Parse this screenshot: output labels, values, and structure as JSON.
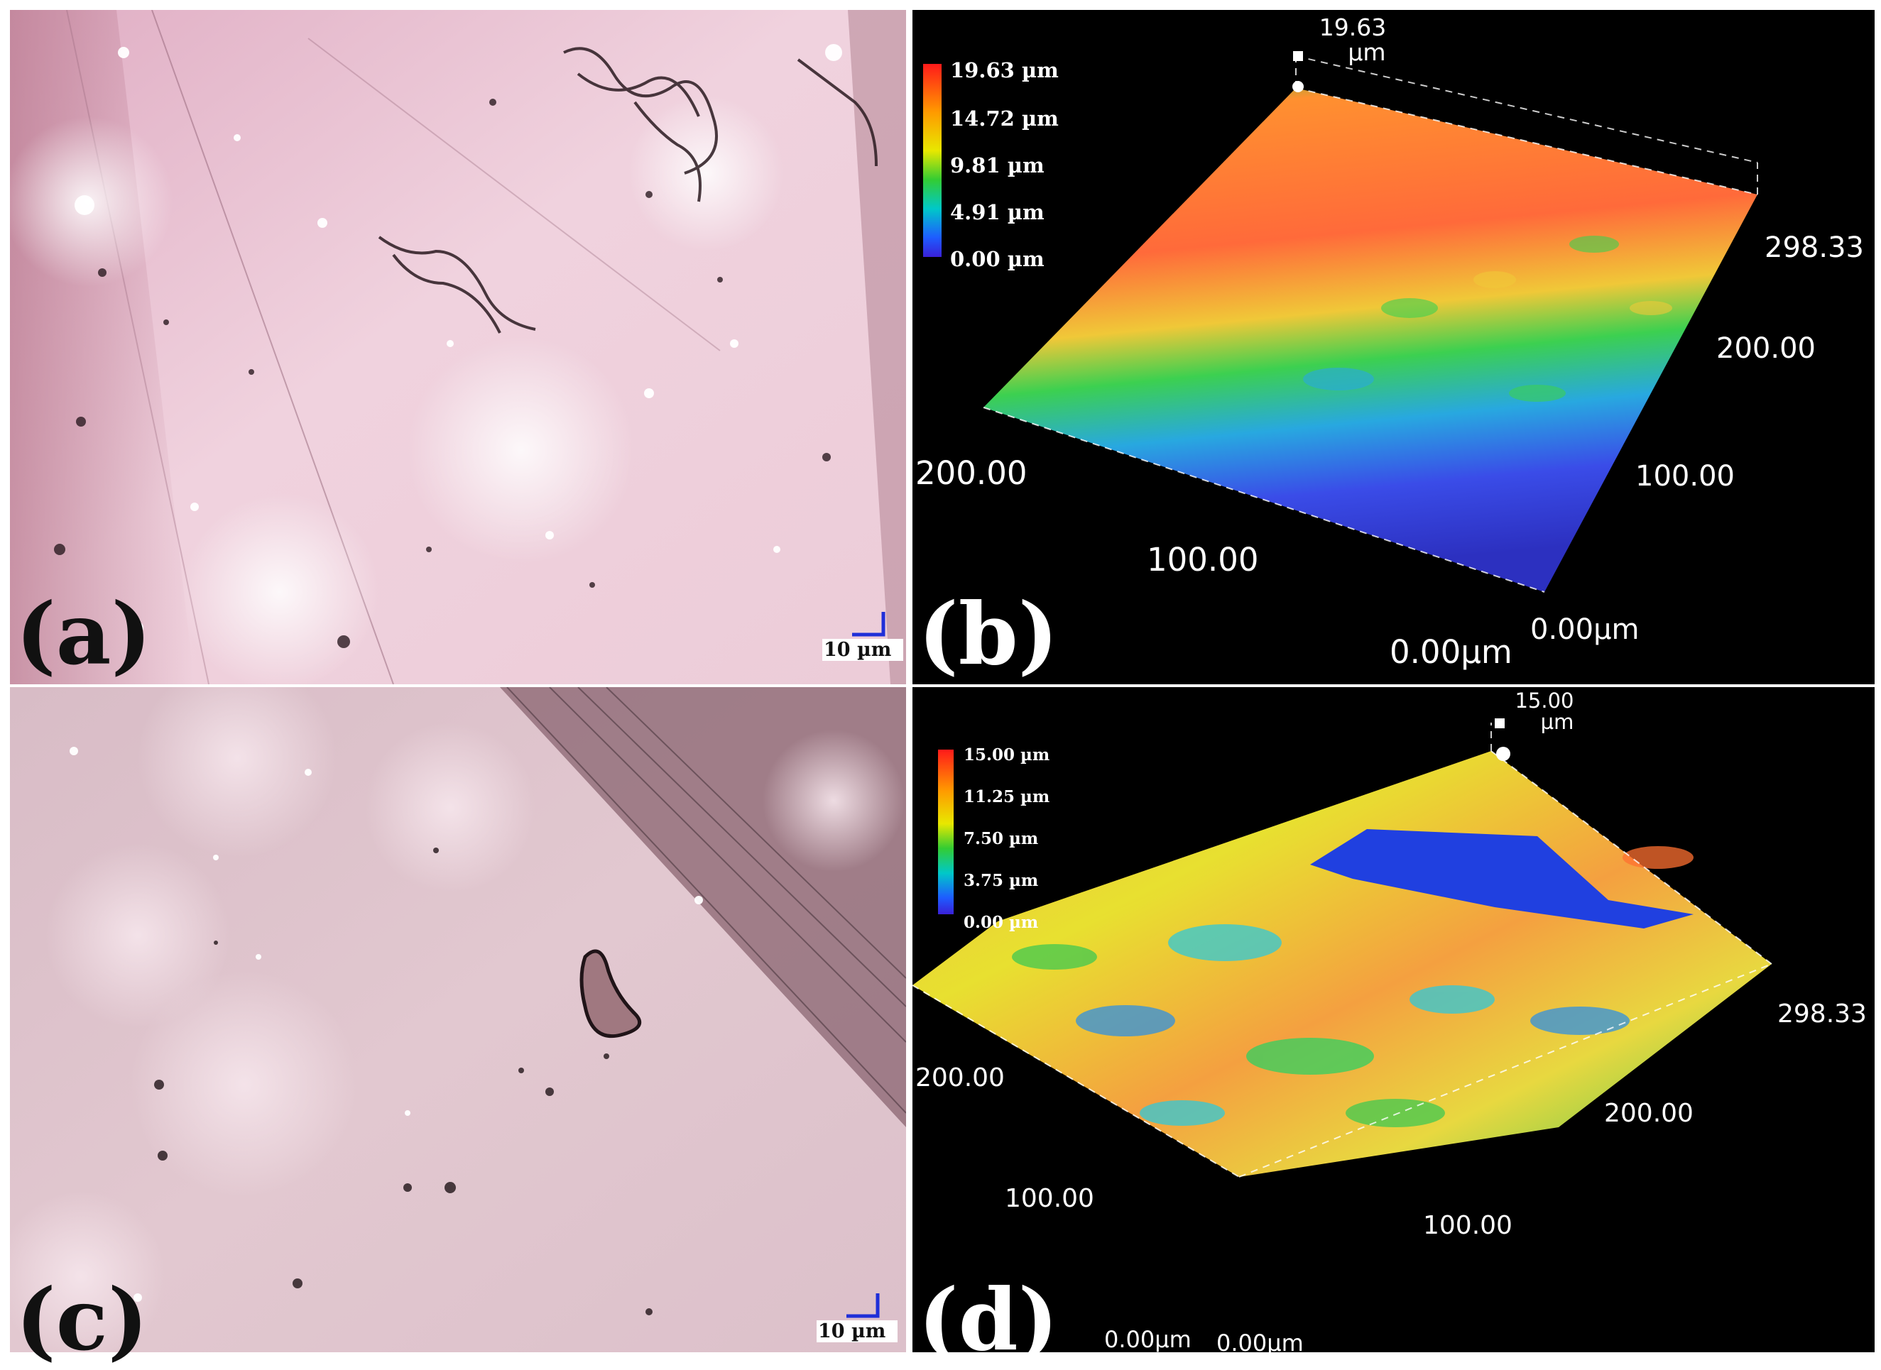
{
  "panels": {
    "a": {
      "label": "(a)",
      "scale": "10 µm"
    },
    "b": {
      "label": "(b)",
      "peak": {
        "value": "19.63",
        "unit": "µm"
      },
      "legend": [
        "19.63 µm",
        "14.72 µm",
        "9.81 µm",
        "4.91 µm",
        "0.00 µm"
      ],
      "axes": [
        "298.33",
        "200.00",
        "100.00",
        "0.00µm",
        "200.00",
        "100.00",
        "0.00µm"
      ]
    },
    "c": {
      "label": "(c)",
      "scale": "10 µm"
    },
    "d": {
      "label": "(d)",
      "peak": {
        "value": "15.00",
        "unit": "µm"
      },
      "legend": [
        "15.00 µm",
        "11.25 µm",
        "7.50 µm",
        "3.75 µm",
        "0.00 µm"
      ],
      "axes": [
        "298.33",
        "200.00",
        "100.00",
        "200.00",
        "100.00",
        "0.00µm",
        "0.00µm"
      ]
    }
  },
  "colors": {
    "colorbar": [
      "#ff1a1a",
      "#ff9a00",
      "#e8e800",
      "#33cc33",
      "#00c8c8",
      "#1e5cff",
      "#3a20d8"
    ],
    "micrograph_a": "#e9c4d2",
    "micrograph_c": "#dcc0c8",
    "profile_background": "#000000"
  }
}
